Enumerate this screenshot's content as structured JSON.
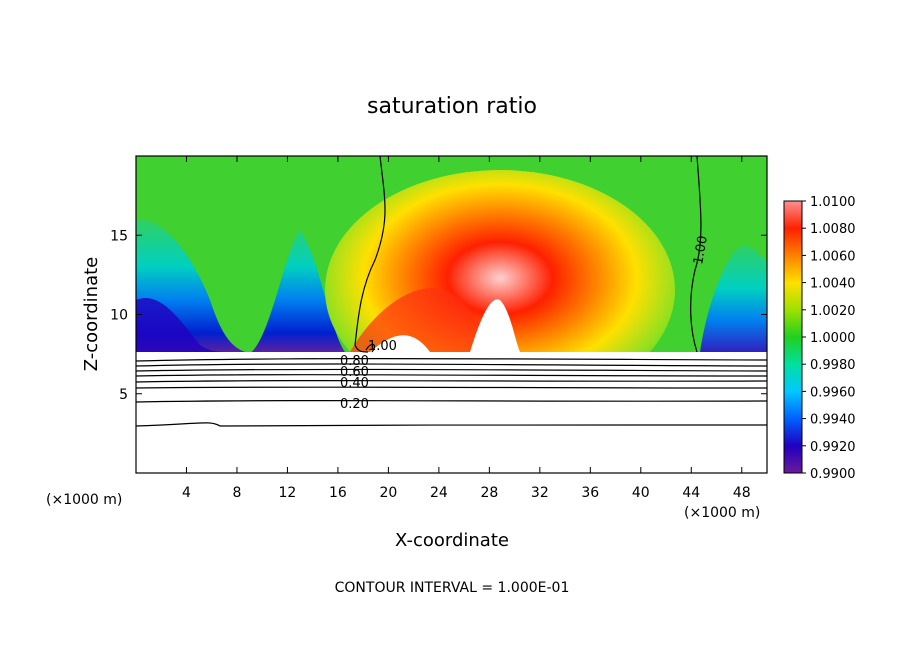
{
  "chart_data": {
    "type": "heatmap",
    "title": "saturation ratio",
    "xlabel": "X-coordinate",
    "ylabel": "Z-coordinate",
    "x_unit": "(×1000 m)",
    "z_unit": "(×1000 m)",
    "xlim": [
      0,
      50
    ],
    "ylim": [
      0,
      20
    ],
    "x_ticks": [
      "4",
      "8",
      "12",
      "16",
      "20",
      "24",
      "28",
      "32",
      "36",
      "40",
      "44",
      "48"
    ],
    "y_ticks": [
      "5",
      "10",
      "15"
    ],
    "colorbar": {
      "min": 0.99,
      "max": 1.01,
      "ticks": [
        "0.9900",
        "0.9920",
        "0.9940",
        "0.9960",
        "0.9980",
        "1.0000",
        "1.0020",
        "1.0040",
        "1.0060",
        "1.0080",
        "1.0100"
      ]
    },
    "contour_labels": [
      "1.00",
      "1.00",
      "0.80",
      "0.60",
      "0.40",
      "0.20"
    ],
    "contour_interval_text": "CONTOUR INTERVAL = 1.000E-01"
  }
}
